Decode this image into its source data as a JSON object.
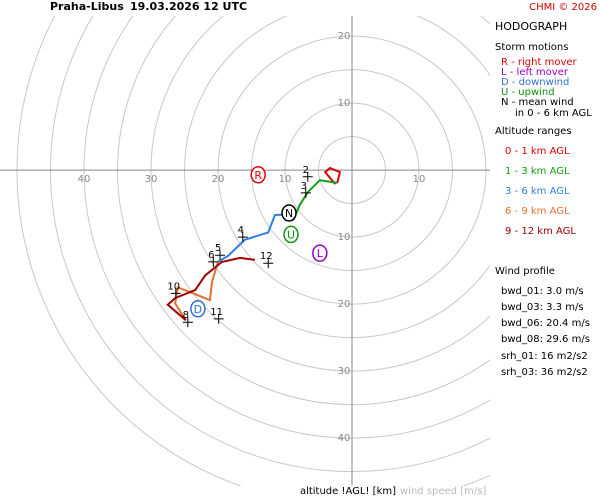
{
  "chart_data": {
    "type": "hodograph",
    "title": "Praha-Libus",
    "subtitle": "19.03.2026 12 UTC",
    "credit": "CHMI © 2026",
    "panel_title": "HODOGRAPH",
    "x_label": "altitude !AGL! [km]",
    "y_label": "wind speed [m/s]",
    "xlim": [
      -50,
      20
    ],
    "ylim": [
      -47,
      23
    ],
    "rings": [
      5,
      10,
      15,
      20,
      25,
      30,
      35,
      40,
      45,
      50
    ],
    "xticks": [
      {
        "value": -40,
        "label": "40"
      },
      {
        "value": -30,
        "label": "30"
      },
      {
        "value": -20,
        "label": "20"
      },
      {
        "value": -10,
        "label": "10"
      },
      10
    ],
    "yticks": [
      20,
      10,
      {
        "value": -10,
        "label": "10"
      },
      {
        "value": -20,
        "label": "20"
      },
      {
        "value": -30,
        "label": "30"
      },
      {
        "value": -40,
        "label": "40"
      }
    ],
    "storm_motion_title": "Storm motions",
    "storm_motions": [
      {
        "letter": "R",
        "name": "R - right mover",
        "color": "#e00000",
        "u": -14,
        "v": -0.7
      },
      {
        "letter": "L",
        "name": "L - left mover",
        "color": "#9900cc",
        "u": -4.8,
        "v": -12.4
      },
      {
        "letter": "D",
        "name": "D - downwind",
        "color": "#3070d8",
        "u": -23,
        "v": -20.7
      },
      {
        "letter": "U",
        "name": "U - upwind",
        "color": "#109010",
        "u": -9.1,
        "v": -9.6
      },
      {
        "letter": "N",
        "name": "N - mean wind",
        "color": "#000000",
        "u": -9.4,
        "v": -6.4
      }
    ],
    "mean_wind_note": "in 0 - 6 km AGL",
    "altitude_title": "Altitude ranges",
    "series": [
      {
        "name": "0 - 1 km AGL",
        "color": "#e00000",
        "u": [
          -2.5,
          -4.0,
          -3.3,
          -1.8,
          -2.2
        ],
        "v": [
          -2.1,
          -0.3,
          0.3,
          -0.3,
          -1.9
        ]
      },
      {
        "name": "1 - 3 km AGL",
        "color": "#10a010",
        "u": [
          -2.2,
          -4.8,
          -6.6,
          -7.8,
          -8.8
        ],
        "v": [
          -1.9,
          -1.5,
          -3.3,
          -5.2,
          -7.5
        ]
      },
      {
        "name": "3 - 6 km AGL",
        "color": "#2f80e0",
        "u": [
          -8.8,
          -11.5,
          -12.5,
          -16,
          -18.5,
          -20
        ],
        "v": [
          -6.6,
          -6.7,
          -9.3,
          -10.4,
          -12.8,
          -13.7
        ]
      },
      {
        "name": "6 - 9 km AGL",
        "color": "#e07030",
        "u": [
          -20,
          -20.9,
          -21.2,
          -24.2,
          -26,
          -26.4,
          -24.8
        ],
        "v": [
          -13.7,
          -16.7,
          -19.4,
          -18.2,
          -17.5,
          -19.9,
          -22.4
        ]
      },
      {
        "name": "9 - 12 km AGL",
        "color": "#a00000",
        "u": [
          -24.8,
          -27.5,
          -26.4,
          -23.4,
          -21.9,
          -19.4,
          -16.7,
          -14.5
        ],
        "v": [
          -22.4,
          -20.1,
          -19.1,
          -17.9,
          -15.7,
          -13.7,
          -13.1,
          -13.4
        ]
      }
    ],
    "heights": [
      {
        "label": 2,
        "u": -6.6,
        "v": -1.0
      },
      {
        "label": 3,
        "u": -6.9,
        "v": -3.4
      },
      {
        "label": 4,
        "u": -16.3,
        "v": -10
      },
      {
        "label": 5,
        "u": -19.7,
        "v": -12.7
      },
      {
        "label": 6,
        "u": -20.7,
        "v": -13.7
      },
      {
        "label": 8,
        "u": -24.5,
        "v": -22.7
      },
      {
        "label": 10,
        "u": -26.3,
        "v": -18.4
      },
      {
        "label": 11,
        "u": -19.9,
        "v": -22.2
      },
      {
        "label": 12,
        "u": -12.5,
        "v": -13.9
      }
    ],
    "profile_title": "Wind profile",
    "profile": [
      "bwd_01: 3.0 m/s",
      "bwd_03: 3.3 m/s",
      "bwd_06: 20.4 m/s",
      "bwd_08: 29.6 m/s"
    ],
    "helicity": [
      "srh_01: 16 m2/s2",
      "srh_03: 36 m2/s2"
    ]
  }
}
